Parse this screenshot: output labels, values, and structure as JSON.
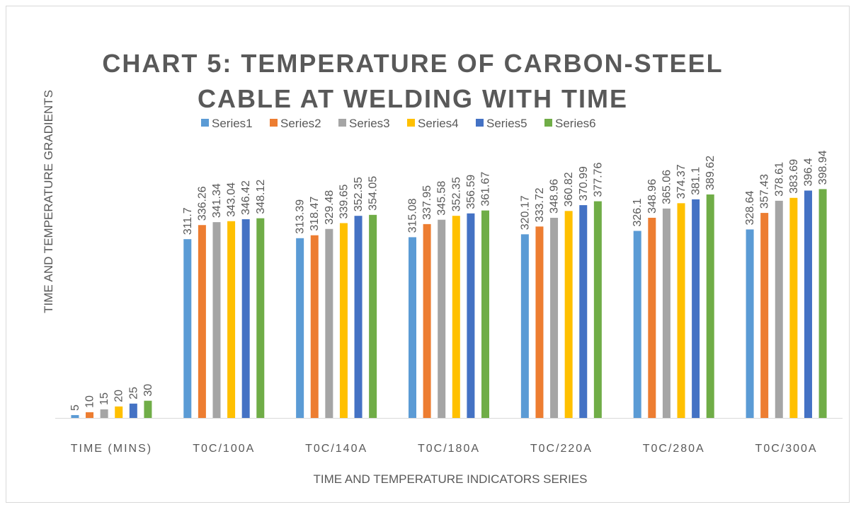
{
  "chart_data": {
    "type": "bar",
    "title": [
      "CHART 5: TEMPERATURE OF CARBON-STEEL",
      "CABLE AT WELDING WITH TIME"
    ],
    "x_label": "TIME AND TEMPERATURE INDICATORS  SERIES",
    "y_label": "TIME AND TEMPERATURE GRADIENTS",
    "categories": [
      "TIME (MINS)",
      "T0C/100A",
      "T0C/140A",
      "T0C/180A",
      "T0C/220A",
      "T0C/280A",
      "T0C/300A"
    ],
    "series": [
      {
        "name": "Series1",
        "color": "#5b9bd5",
        "values": [
          5,
          311.7,
          313.39,
          315.08,
          320.17,
          326.1,
          328.64
        ]
      },
      {
        "name": "Series2",
        "color": "#ed7d31",
        "values": [
          10,
          336.26,
          318.47,
          337.95,
          333.72,
          348.96,
          357.43
        ]
      },
      {
        "name": "Series3",
        "color": "#a5a5a5",
        "values": [
          15,
          341.34,
          329.48,
          345.58,
          348.96,
          365.06,
          378.61
        ]
      },
      {
        "name": "Series4",
        "color": "#ffc000",
        "values": [
          20,
          343.04,
          339.65,
          352.35,
          360.82,
          374.37,
          383.69
        ]
      },
      {
        "name": "Series5",
        "color": "#4472c4",
        "values": [
          25,
          346.42,
          352.35,
          356.59,
          370.99,
          381.1,
          396.4
        ]
      },
      {
        "name": "Series6",
        "color": "#70ad47",
        "values": [
          30,
          348.12,
          354.05,
          361.67,
          377.76,
          389.62,
          398.94
        ]
      }
    ],
    "ylim": [
      0,
      450
    ],
    "legend": "top"
  }
}
